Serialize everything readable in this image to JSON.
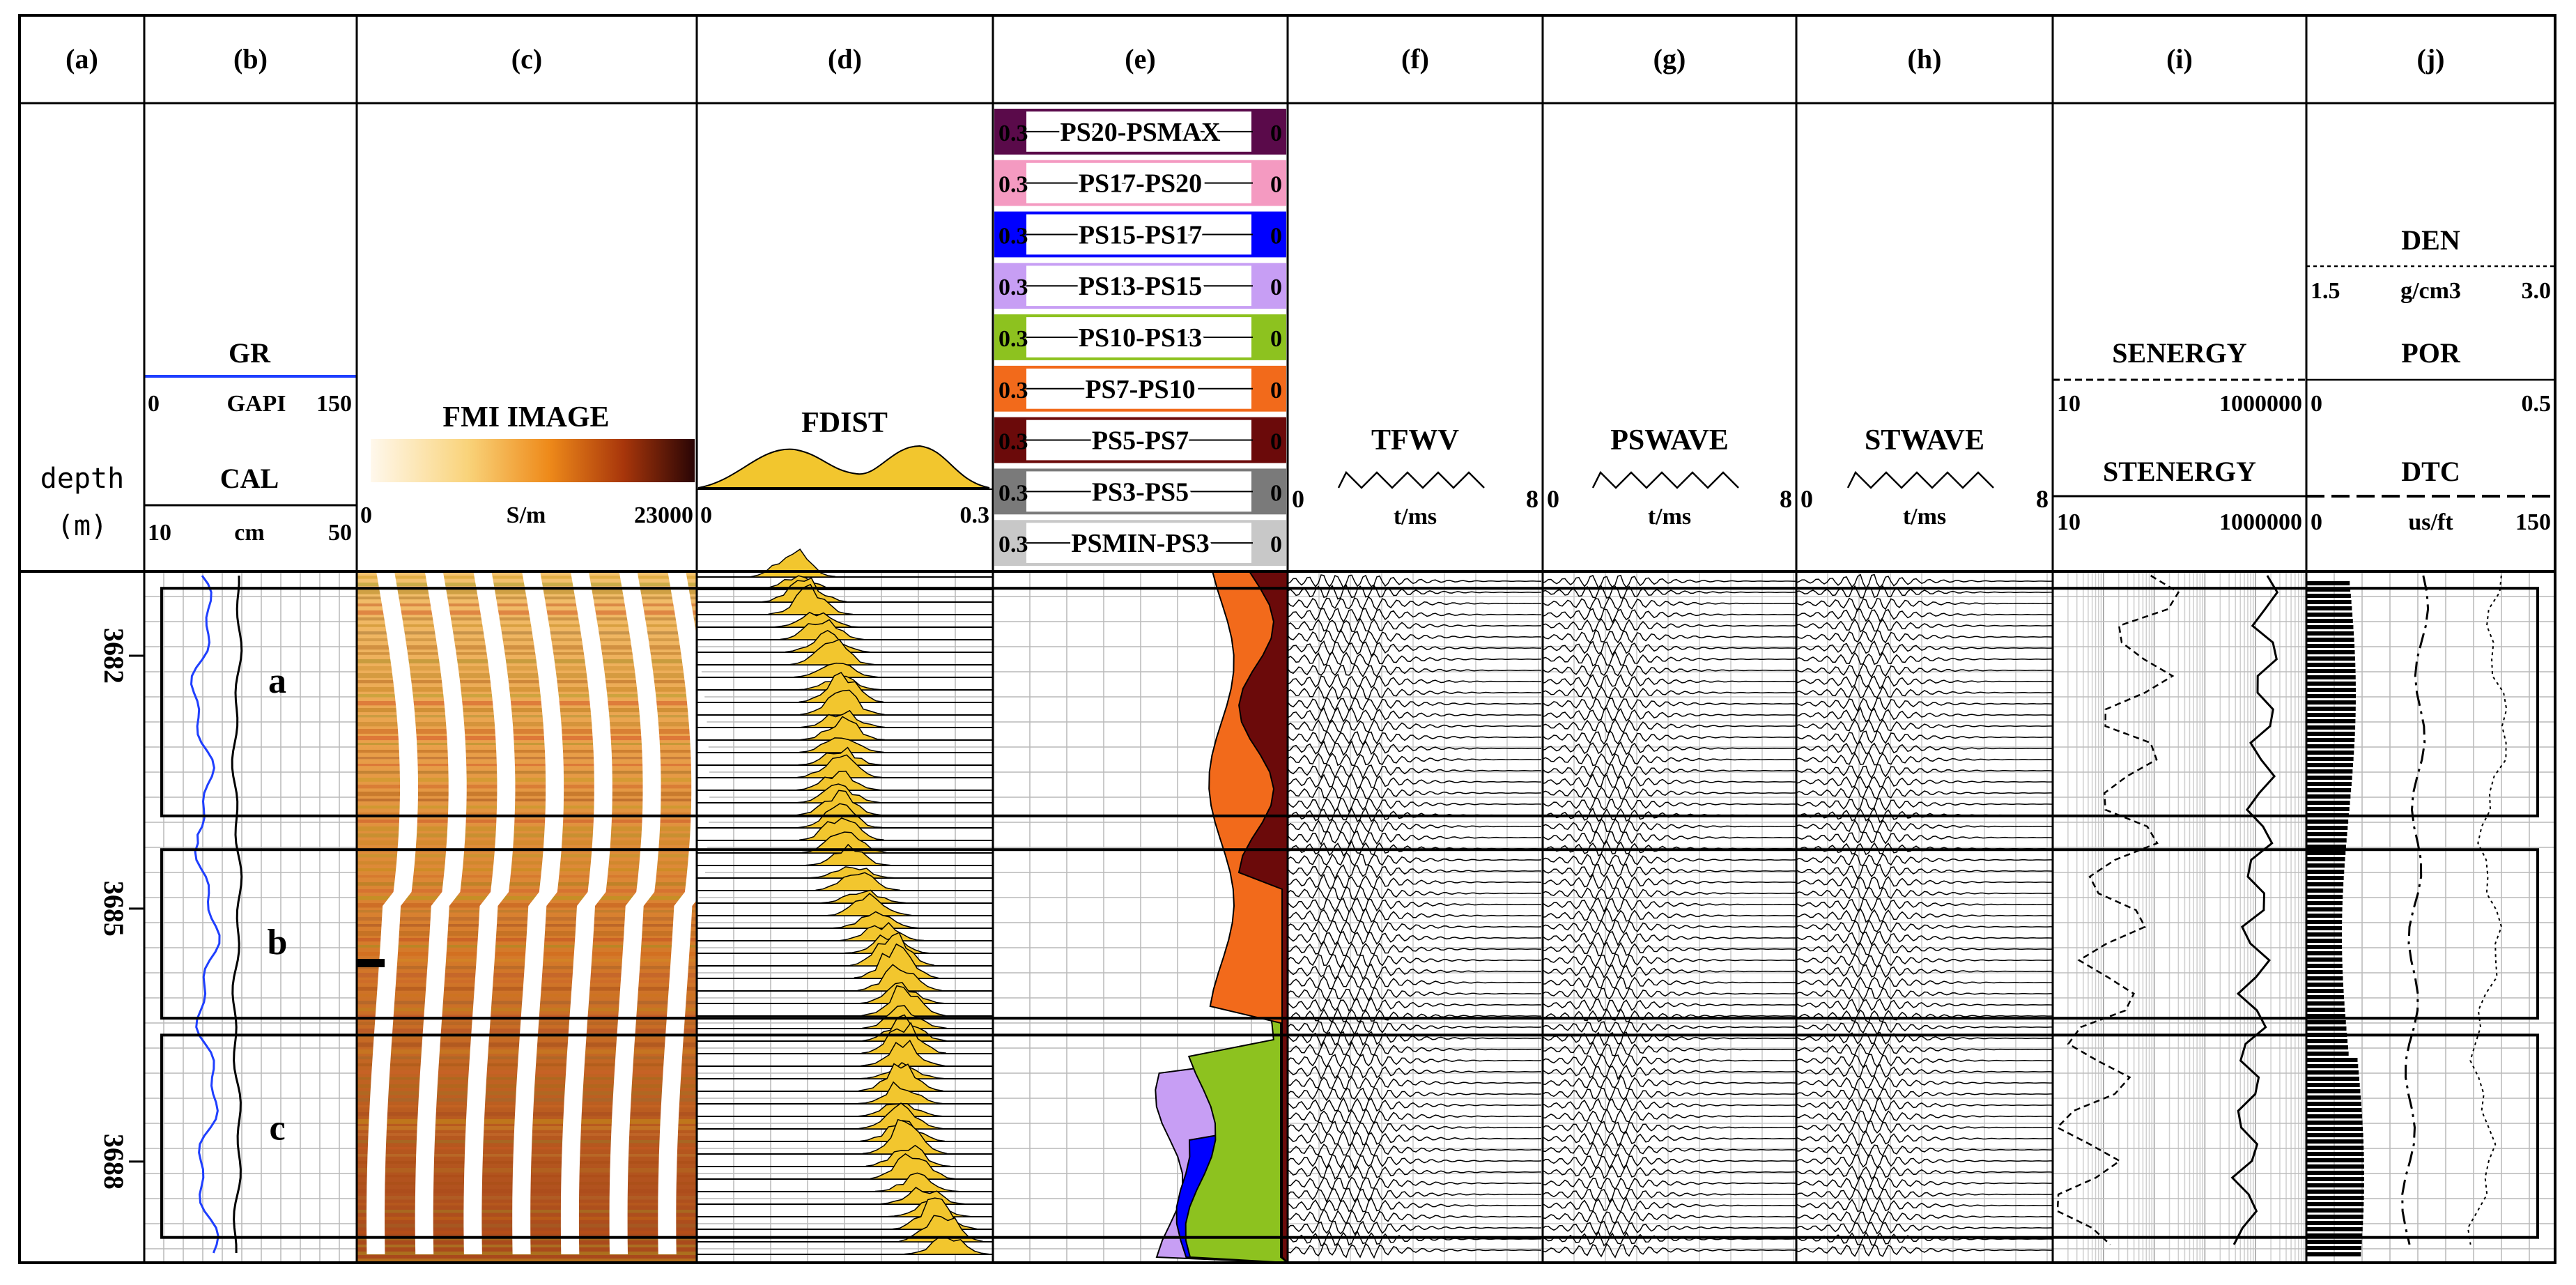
{
  "chart_data": {
    "type": "well-log",
    "depth_label": "depth",
    "depth_unit": "(m)",
    "depth_range": [
      3681,
      3689.2
    ],
    "depth_ticks": [
      3682,
      3685,
      3688
    ],
    "depth_tick_labels": [
      "3682",
      "3685",
      "3688"
    ],
    "zones": [
      {
        "label": "a",
        "top": 3681.2,
        "bottom": 3683.9
      },
      {
        "label": "b",
        "top": 3684.3,
        "bottom": 3686.3
      },
      {
        "label": "c",
        "top": 3686.5,
        "bottom": 3688.9
      }
    ],
    "tracks": {
      "a": {
        "letter": "(a)"
      },
      "b": {
        "letter": "(b)",
        "curves": [
          {
            "name": "GR",
            "unit": "GAPI",
            "min": "0",
            "max": "150",
            "color": "#1f3fff"
          },
          {
            "name": "CAL",
            "unit": "cm",
            "min": "10",
            "max": "50",
            "color": "#000000"
          }
        ]
      },
      "c": {
        "letter": "(c)",
        "title": "FMI IMAGE",
        "unit": "S/m",
        "min": "0",
        "max": "23000"
      },
      "d": {
        "letter": "(d)",
        "title": "FDIST",
        "min": "0",
        "max": "0.3"
      },
      "e": {
        "letter": "(e)",
        "bins": [
          {
            "name": "PS20-PSMAX",
            "min": "0.3",
            "max": "0",
            "color": "#5a0a4a"
          },
          {
            "name": "PS17-PS20",
            "min": "0.3",
            "max": "0",
            "color": "#f49ac1"
          },
          {
            "name": "PS15-PS17",
            "min": "0.3",
            "max": "0",
            "color": "#0000ff"
          },
          {
            "name": "PS13-PS15",
            "min": "0.3",
            "max": "0",
            "color": "#c79ef4"
          },
          {
            "name": "PS10-PS13",
            "min": "0.3",
            "max": "0",
            "color": "#8dc21f"
          },
          {
            "name": "PS7-PS10",
            "min": "0.3",
            "max": "0",
            "color": "#f26a1b"
          },
          {
            "name": "PS5-PS7",
            "min": "0.3",
            "max": "0",
            "color": "#6b0a0a"
          },
          {
            "name": "PS3-PS5",
            "min": "0.3",
            "max": "0",
            "color": "#7a7a7a"
          },
          {
            "name": "PSMIN-PS3",
            "min": "0.3",
            "max": "0",
            "color": "#c8c8c8"
          }
        ]
      },
      "f": {
        "letter": "(f)",
        "title": "TFWV",
        "unit": "t/ms",
        "min": "0",
        "max": "8"
      },
      "g": {
        "letter": "(g)",
        "title": "PSWAVE",
        "unit": "t/ms",
        "min": "0",
        "max": "8"
      },
      "h": {
        "letter": "(h)",
        "title": "STWAVE",
        "unit": "t/ms",
        "min": "0",
        "max": "8"
      },
      "i": {
        "letter": "(i)",
        "curves": [
          {
            "name": "SENERGY",
            "min": "10",
            "max": "1000000",
            "style": "dashed"
          },
          {
            "name": "STENERGY",
            "min": "10",
            "max": "1000000",
            "style": "solid"
          }
        ]
      },
      "j": {
        "letter": "(j)",
        "curves": [
          {
            "name": "DEN",
            "unit": "g/cm3",
            "min": "1.5",
            "max": "3.0",
            "style": "dotted"
          },
          {
            "name": "POR",
            "min": "0",
            "max": "0.5",
            "style": "bar"
          },
          {
            "name": "DTC",
            "unit": "us/ft",
            "min": "0",
            "max": "150",
            "style": "dash-dot"
          }
        ]
      }
    }
  }
}
